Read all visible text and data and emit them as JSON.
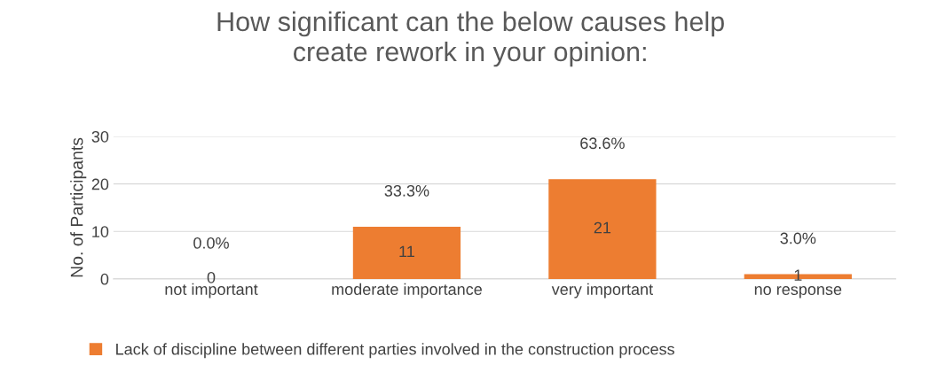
{
  "chart_data": {
    "type": "bar",
    "title": "How significant can the below causes help\ncreate rework in your opinion:",
    "ylabel": "No. of Participants",
    "categories": [
      "not important",
      "moderate importance",
      "very important",
      "no response"
    ],
    "series": [
      {
        "name": "Lack of discipline between different parties involved in the construction process",
        "color": "#ed7d31",
        "values": [
          0,
          11,
          21,
          1
        ],
        "value_labels": [
          "0",
          "11",
          "21",
          "1"
        ]
      }
    ],
    "annotations": [
      {
        "text": "0.0%",
        "x": "not important",
        "y": 0
      },
      {
        "text": "33.3%",
        "x": "moderate importance",
        "y": 11
      },
      {
        "text": "63.6%",
        "x": "very important",
        "y": 21
      },
      {
        "text": "3.0%",
        "x": "no response",
        "y": 1
      }
    ],
    "ylim": [
      0,
      30
    ],
    "yticks": [
      0,
      10,
      20,
      30
    ],
    "grid": "y",
    "legend": "bottom"
  }
}
